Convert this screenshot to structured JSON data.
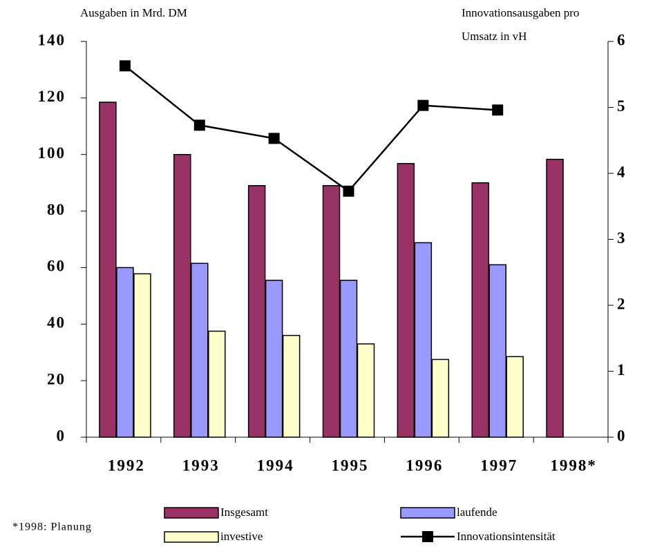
{
  "chart_data": {
    "type": "bar",
    "ylabel": "Ausgaben in Mrd. DM",
    "y2label": [
      "Innovationsausgaben pro",
      "Umsatz in vH"
    ],
    "footnote": "*1998: Planung",
    "categories": [
      "1992",
      "1993",
      "1994",
      "1995",
      "1996",
      "1997",
      "1998*"
    ],
    "series": [
      {
        "name": "Insgesamt",
        "color": "#993366",
        "type": "bar",
        "values": [
          118.5,
          100,
          89,
          89,
          96.8,
          90,
          98.3
        ]
      },
      {
        "name": "laufende",
        "color": "#9999ff",
        "type": "bar",
        "values": [
          60,
          61.5,
          55.5,
          55.5,
          68.8,
          61,
          null
        ]
      },
      {
        "name": "investive",
        "color": "#ffffcc",
        "type": "bar",
        "values": [
          57.8,
          37.5,
          36,
          33,
          27.5,
          28.5,
          null
        ]
      },
      {
        "name": "Innovationsintensität",
        "color": "#000000",
        "type": "line",
        "axis": "y2",
        "values": [
          5.63,
          4.73,
          4.53,
          3.73,
          5.03,
          4.96,
          null
        ]
      }
    ],
    "ylim": [
      0,
      140
    ],
    "yticks": [
      0,
      20,
      40,
      60,
      80,
      100,
      120,
      140
    ],
    "y2lim": [
      0,
      6
    ],
    "y2ticks": [
      0,
      1,
      2,
      3,
      4,
      5,
      6
    ]
  }
}
